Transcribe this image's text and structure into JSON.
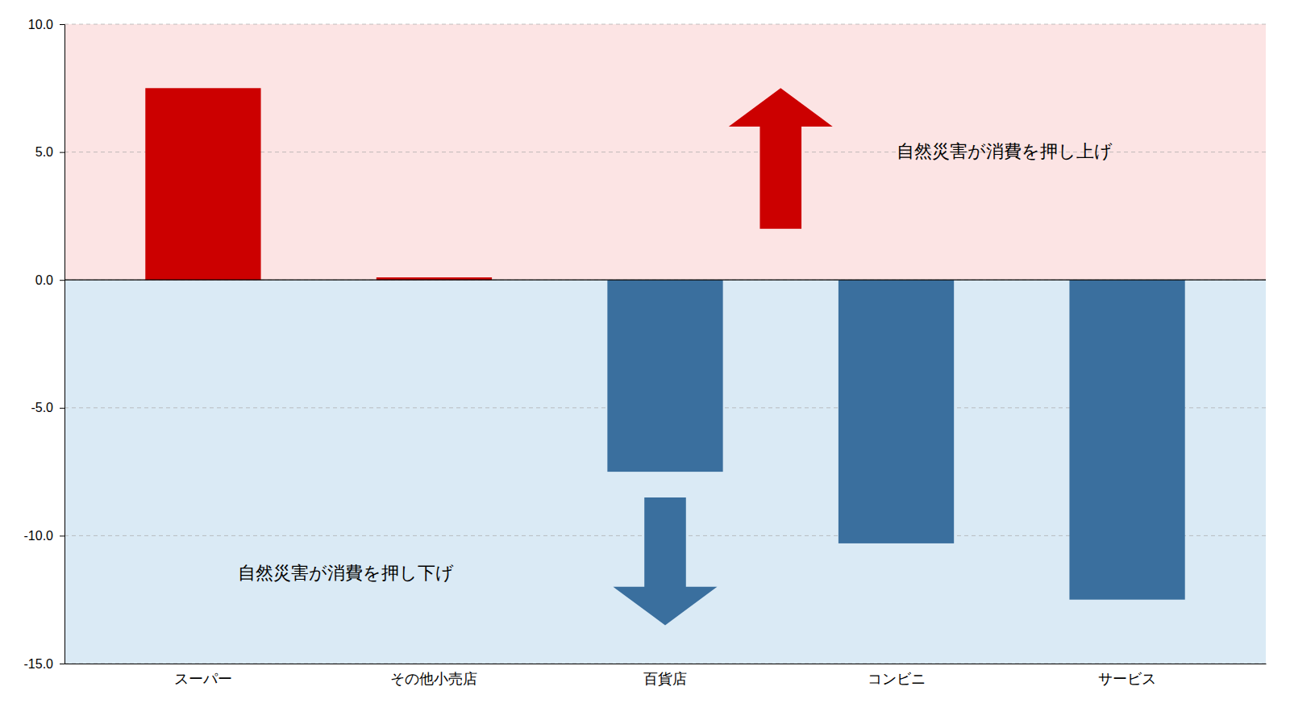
{
  "chart_data": {
    "type": "bar",
    "categories": [
      "スーパー",
      "その他小売店",
      "百貨店",
      "コンビニ",
      "サービス"
    ],
    "values": [
      7.5,
      0.1,
      -7.5,
      -10.3,
      -12.5
    ],
    "colors": [
      "#cc0000",
      "#cc0000",
      "#3a6f9e",
      "#3a6f9e",
      "#3a6f9e"
    ],
    "ylim": [
      -15,
      10
    ],
    "yticks": [
      {
        "value": -15,
        "label": "-15.0"
      },
      {
        "value": -10,
        "label": "-10.0"
      },
      {
        "value": -5,
        "label": "-5.0"
      },
      {
        "value": 0,
        "label": "0.0"
      },
      {
        "value": 5,
        "label": "5.0"
      },
      {
        "value": 10,
        "label": "10.0"
      }
    ],
    "grid": true,
    "annotations": [
      "自然災害が消費を押し上げ",
      "自然災害が消費を押し下げ"
    ]
  }
}
